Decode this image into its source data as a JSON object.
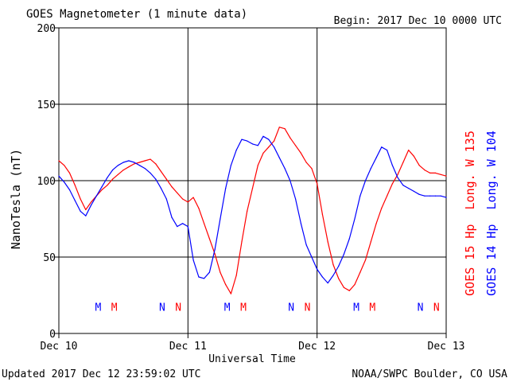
{
  "chart_data": {
    "type": "line",
    "title": "GOES Magnetometer (1 minute data)",
    "begin_label": "Begin:  2017 Dec 10 0000 UTC",
    "xlabel": "Universal Time",
    "ylabel": "NanoTesla (nT)",
    "ylim": [
      0,
      200
    ],
    "y_ticks": [
      0,
      50,
      100,
      150,
      200
    ],
    "xlim_hours": [
      0,
      72
    ],
    "x_ticks": [
      {
        "h": 0,
        "label": "Dec 10"
      },
      {
        "h": 24,
        "label": "Dec 11"
      },
      {
        "h": 48,
        "label": "Dec 12"
      },
      {
        "h": 72,
        "label": "Dec 13"
      }
    ],
    "grid": true,
    "series": [
      {
        "name": "GOES 15 Hp  Long. W 135",
        "color": "#ff0000",
        "points": [
          [
            0,
            113
          ],
          [
            1,
            110
          ],
          [
            2,
            105
          ],
          [
            3,
            97
          ],
          [
            4,
            88
          ],
          [
            5,
            81
          ],
          [
            6,
            86
          ],
          [
            7,
            90
          ],
          [
            8,
            94
          ],
          [
            9,
            97
          ],
          [
            10,
            101
          ],
          [
            11,
            104
          ],
          [
            12,
            107
          ],
          [
            13,
            109
          ],
          [
            14,
            111
          ],
          [
            15,
            112
          ],
          [
            16,
            113
          ],
          [
            17,
            114
          ],
          [
            18,
            111
          ],
          [
            19,
            106
          ],
          [
            20,
            101
          ],
          [
            21,
            96
          ],
          [
            22,
            92
          ],
          [
            23,
            88
          ],
          [
            24,
            86
          ],
          [
            25,
            89
          ],
          [
            26,
            82
          ],
          [
            27,
            72
          ],
          [
            28,
            62
          ],
          [
            29,
            52
          ],
          [
            30,
            40
          ],
          [
            31,
            32
          ],
          [
            32,
            26
          ],
          [
            33,
            38
          ],
          [
            34,
            60
          ],
          [
            35,
            80
          ],
          [
            36,
            95
          ],
          [
            37,
            110
          ],
          [
            38,
            118
          ],
          [
            39,
            122
          ],
          [
            40,
            126
          ],
          [
            41,
            135
          ],
          [
            42,
            134
          ],
          [
            43,
            128
          ],
          [
            44,
            123
          ],
          [
            45,
            118
          ],
          [
            46,
            112
          ],
          [
            47,
            108
          ],
          [
            48,
            98
          ],
          [
            49,
            78
          ],
          [
            50,
            60
          ],
          [
            51,
            45
          ],
          [
            52,
            36
          ],
          [
            53,
            30
          ],
          [
            54,
            28
          ],
          [
            55,
            32
          ],
          [
            56,
            40
          ],
          [
            57,
            48
          ],
          [
            58,
            60
          ],
          [
            59,
            72
          ],
          [
            60,
            82
          ],
          [
            61,
            90
          ],
          [
            62,
            98
          ],
          [
            63,
            104
          ],
          [
            64,
            112
          ],
          [
            65,
            120
          ],
          [
            66,
            116
          ],
          [
            67,
            110
          ],
          [
            68,
            107
          ],
          [
            69,
            105
          ],
          [
            70,
            105
          ],
          [
            71,
            104
          ],
          [
            72,
            103
          ]
        ]
      },
      {
        "name": "GOES 14 Hp  Long. W 104",
        "color": "#0000ff",
        "points": [
          [
            0,
            103
          ],
          [
            1,
            99
          ],
          [
            2,
            94
          ],
          [
            3,
            87
          ],
          [
            4,
            80
          ],
          [
            5,
            77
          ],
          [
            6,
            84
          ],
          [
            7,
            90
          ],
          [
            8,
            96
          ],
          [
            9,
            102
          ],
          [
            10,
            107
          ],
          [
            11,
            110
          ],
          [
            12,
            112
          ],
          [
            13,
            113
          ],
          [
            14,
            112
          ],
          [
            15,
            110
          ],
          [
            16,
            108
          ],
          [
            17,
            105
          ],
          [
            18,
            101
          ],
          [
            19,
            95
          ],
          [
            20,
            88
          ],
          [
            21,
            76
          ],
          [
            22,
            70
          ],
          [
            23,
            72
          ],
          [
            24,
            70
          ],
          [
            25,
            48
          ],
          [
            26,
            37
          ],
          [
            27,
            36
          ],
          [
            28,
            40
          ],
          [
            29,
            55
          ],
          [
            30,
            75
          ],
          [
            31,
            95
          ],
          [
            32,
            110
          ],
          [
            33,
            120
          ],
          [
            34,
            127
          ],
          [
            35,
            126
          ],
          [
            36,
            124
          ],
          [
            37,
            123
          ],
          [
            38,
            129
          ],
          [
            39,
            127
          ],
          [
            40,
            122
          ],
          [
            41,
            115
          ],
          [
            42,
            108
          ],
          [
            43,
            100
          ],
          [
            44,
            88
          ],
          [
            45,
            72
          ],
          [
            46,
            58
          ],
          [
            47,
            50
          ],
          [
            48,
            42
          ],
          [
            49,
            37
          ],
          [
            50,
            33
          ],
          [
            51,
            38
          ],
          [
            52,
            44
          ],
          [
            53,
            52
          ],
          [
            54,
            62
          ],
          [
            55,
            75
          ],
          [
            56,
            90
          ],
          [
            57,
            100
          ],
          [
            58,
            108
          ],
          [
            59,
            115
          ],
          [
            60,
            122
          ],
          [
            61,
            120
          ],
          [
            62,
            110
          ],
          [
            63,
            102
          ],
          [
            64,
            97
          ],
          [
            65,
            95
          ],
          [
            66,
            93
          ],
          [
            67,
            91
          ],
          [
            68,
            90
          ],
          [
            69,
            90
          ],
          [
            70,
            90
          ],
          [
            71,
            90
          ],
          [
            72,
            89
          ]
        ]
      }
    ],
    "markers": [
      {
        "h": 7.3,
        "label": "M",
        "color": "#0000ff"
      },
      {
        "h": 10.3,
        "label": "M",
        "color": "#ff0000"
      },
      {
        "h": 19.2,
        "label": "N",
        "color": "#0000ff"
      },
      {
        "h": 22.2,
        "label": "N",
        "color": "#ff0000"
      },
      {
        "h": 31.3,
        "label": "M",
        "color": "#0000ff"
      },
      {
        "h": 34.3,
        "label": "M",
        "color": "#ff0000"
      },
      {
        "h": 43.2,
        "label": "N",
        "color": "#0000ff"
      },
      {
        "h": 46.2,
        "label": "N",
        "color": "#ff0000"
      },
      {
        "h": 55.3,
        "label": "M",
        "color": "#0000ff"
      },
      {
        "h": 58.3,
        "label": "M",
        "color": "#ff0000"
      },
      {
        "h": 67.2,
        "label": "N",
        "color": "#0000ff"
      },
      {
        "h": 70.2,
        "label": "N",
        "color": "#ff0000"
      }
    ],
    "marker_y": 18
  },
  "footer": {
    "updated": "Updated 2017 Dec 12 23:59:02 UTC",
    "source": "NOAA/SWPC Boulder, CO USA"
  }
}
